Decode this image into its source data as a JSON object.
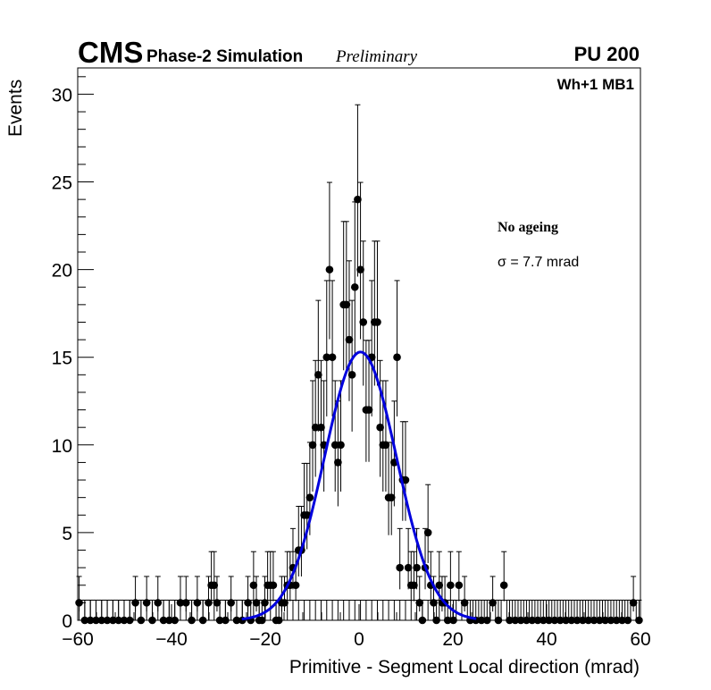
{
  "header": {
    "experiment": "CMS",
    "simulation": "Phase-2 Simulation",
    "status": "Preliminary",
    "pileup": "PU 200"
  },
  "legend": {
    "region": "Wh+1 MB1",
    "condition": "No ageing",
    "resolution": "σ = 7.7 mrad"
  },
  "chart_data": {
    "type": "scatter",
    "title": "",
    "xlabel": "Primitive - Segment Local direction (mrad)",
    "ylabel": "Events",
    "xlim": [
      -60,
      60
    ],
    "ylim": [
      0,
      31.5
    ],
    "xticks": [
      -60,
      -40,
      -20,
      0,
      20,
      40,
      60
    ],
    "xtick_labels": [
      "−60",
      "−40",
      "−20",
      "0",
      "20",
      "40",
      "60"
    ],
    "yticks": [
      0,
      5,
      10,
      15,
      20,
      25,
      30
    ],
    "ytick_labels": [
      "0",
      "5",
      "10",
      "15",
      "20",
      "25",
      "30"
    ],
    "bin_width": 0.6,
    "series": [
      {
        "name": "data",
        "style": "points with Poisson error bars",
        "color": "#000000",
        "points": [
          [
            -59.7,
            1
          ],
          [
            -58.5,
            0
          ],
          [
            -57.3,
            0
          ],
          [
            -56.1,
            0
          ],
          [
            -54.9,
            0
          ],
          [
            -53.7,
            0
          ],
          [
            -52.5,
            0
          ],
          [
            -51.3,
            0
          ],
          [
            -50.1,
            0
          ],
          [
            -48.9,
            0
          ],
          [
            -47.7,
            1
          ],
          [
            -46.5,
            0
          ],
          [
            -45.3,
            1
          ],
          [
            -44.1,
            0
          ],
          [
            -42.9,
            1
          ],
          [
            -41.7,
            0
          ],
          [
            -40.5,
            0
          ],
          [
            -39.3,
            0
          ],
          [
            -38.1,
            1
          ],
          [
            -36.9,
            1
          ],
          [
            -35.7,
            0
          ],
          [
            -34.5,
            1
          ],
          [
            -33.3,
            0
          ],
          [
            -32.1,
            1
          ],
          [
            -31.5,
            2
          ],
          [
            -30.9,
            2
          ],
          [
            -30.3,
            1
          ],
          [
            -29.7,
            0
          ],
          [
            -28.5,
            0
          ],
          [
            -27.3,
            1
          ],
          [
            -26.1,
            0
          ],
          [
            -24.9,
            0
          ],
          [
            -23.7,
            1
          ],
          [
            -23.1,
            0
          ],
          [
            -22.5,
            2
          ],
          [
            -21.9,
            1
          ],
          [
            -21.3,
            0
          ],
          [
            -20.7,
            0
          ],
          [
            -20.1,
            1
          ],
          [
            -19.5,
            2
          ],
          [
            -18.9,
            2
          ],
          [
            -18.3,
            2
          ],
          [
            -17.7,
            0
          ],
          [
            -17.1,
            0
          ],
          [
            -16.5,
            1
          ],
          [
            -15.9,
            1
          ],
          [
            -15.3,
            2
          ],
          [
            -14.7,
            2
          ],
          [
            -14.1,
            3
          ],
          [
            -13.5,
            2
          ],
          [
            -12.9,
            4
          ],
          [
            -12.3,
            4
          ],
          [
            -11.7,
            6
          ],
          [
            -11.1,
            6
          ],
          [
            -10.5,
            7
          ],
          [
            -9.9,
            10
          ],
          [
            -9.3,
            11
          ],
          [
            -8.7,
            14
          ],
          [
            -8.1,
            11
          ],
          [
            -7.5,
            10
          ],
          [
            -6.9,
            15
          ],
          [
            -6.3,
            20
          ],
          [
            -5.7,
            15
          ],
          [
            -5.1,
            10
          ],
          [
            -4.5,
            9
          ],
          [
            -3.9,
            10
          ],
          [
            -3.3,
            18
          ],
          [
            -2.7,
            18
          ],
          [
            -2.1,
            16
          ],
          [
            -1.5,
            14
          ],
          [
            -0.9,
            19
          ],
          [
            -0.3,
            24
          ],
          [
            0.3,
            20
          ],
          [
            0.9,
            17
          ],
          [
            1.5,
            12
          ],
          [
            2.1,
            12
          ],
          [
            2.7,
            15
          ],
          [
            3.3,
            17
          ],
          [
            3.9,
            17
          ],
          [
            4.5,
            11
          ],
          [
            5.1,
            10
          ],
          [
            5.7,
            10
          ],
          [
            6.3,
            7
          ],
          [
            6.9,
            7
          ],
          [
            7.5,
            9
          ],
          [
            8.1,
            15
          ],
          [
            8.7,
            3
          ],
          [
            9.3,
            8
          ],
          [
            9.9,
            8
          ],
          [
            10.5,
            3
          ],
          [
            11.1,
            2
          ],
          [
            11.7,
            2
          ],
          [
            12.3,
            3
          ],
          [
            12.9,
            1
          ],
          [
            13.5,
            0
          ],
          [
            14.1,
            3
          ],
          [
            14.7,
            5
          ],
          [
            15.3,
            2
          ],
          [
            15.9,
            1
          ],
          [
            16.5,
            0
          ],
          [
            17.1,
            2
          ],
          [
            17.7,
            1
          ],
          [
            18.3,
            1
          ],
          [
            18.9,
            0
          ],
          [
            19.5,
            2
          ],
          [
            20.1,
            0
          ],
          [
            21.3,
            2
          ],
          [
            22.5,
            1
          ],
          [
            23.7,
            0
          ],
          [
            24.9,
            0
          ],
          [
            26.1,
            0
          ],
          [
            27.3,
            0
          ],
          [
            28.5,
            1
          ],
          [
            29.7,
            0
          ],
          [
            30.9,
            2
          ],
          [
            32.1,
            0
          ],
          [
            33.3,
            0
          ],
          [
            34.5,
            0
          ],
          [
            35.7,
            0
          ],
          [
            36.9,
            0
          ],
          [
            38.1,
            0
          ],
          [
            39.3,
            0
          ],
          [
            40.5,
            0
          ],
          [
            41.7,
            0
          ],
          [
            42.9,
            0
          ],
          [
            44.1,
            0
          ],
          [
            45.3,
            0
          ],
          [
            46.5,
            0
          ],
          [
            47.7,
            0
          ],
          [
            48.9,
            0
          ],
          [
            50.1,
            0
          ],
          [
            51.3,
            0
          ],
          [
            52.5,
            0
          ],
          [
            53.7,
            0
          ],
          [
            54.9,
            0
          ],
          [
            56.1,
            0
          ],
          [
            57.3,
            0
          ],
          [
            58.5,
            1
          ],
          [
            59.7,
            0
          ]
        ]
      },
      {
        "name": "gaussian fit",
        "style": "line",
        "color": "#0000dd",
        "function": "gaussian",
        "amplitude": 15.3,
        "mean": 0.3,
        "sigma": 7.7
      }
    ]
  }
}
